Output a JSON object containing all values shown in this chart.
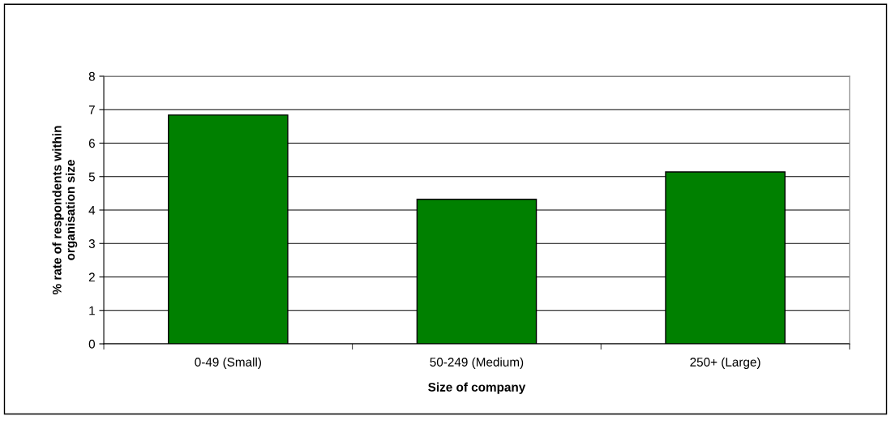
{
  "chart_data": {
    "type": "bar",
    "xlabel": "Size of company",
    "ylabel": "% rate of respondents within\norganisation size",
    "categories": [
      "0-49 (Small)",
      "50-249 (Medium)",
      "250+ (Large)"
    ],
    "values": [
      6.84,
      4.32,
      5.14
    ],
    "color": "#008000",
    "ylim": [
      0,
      8
    ],
    "yticks": [
      0,
      1,
      2,
      3,
      4,
      5,
      6,
      7,
      8
    ],
    "grid": "y",
    "legend": false
  }
}
